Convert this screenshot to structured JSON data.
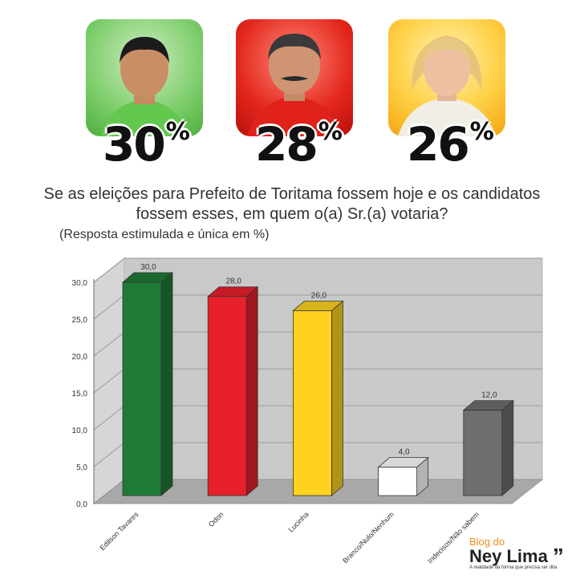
{
  "candidates": [
    {
      "percent": "30",
      "sign": "%",
      "color": "#4cae3c"
    },
    {
      "percent": "28",
      "sign": "%",
      "color": "#e3261c"
    },
    {
      "percent": "26",
      "sign": "%",
      "color": "#ffc830"
    }
  ],
  "question": "Se as eleições para Prefeito de Toritama fossem hoje e os candidatos fossem esses, em quem o(a) Sr.(a) votaria?",
  "note": "(Resposta estimulada e única em %)",
  "chart_data": {
    "type": "bar",
    "categories": [
      "Edilson Tavares",
      "Odon",
      "Lucinha",
      "Branco/Nulo/Nenhum",
      "Indecisos/Não sabem"
    ],
    "values": [
      30.0,
      28.0,
      26.0,
      4.0,
      12.0
    ],
    "value_labels": [
      "30,0",
      "28,0",
      "26,0",
      "4,0",
      "12,0"
    ],
    "bar_colors": [
      "#1e7a36",
      "#e8202a",
      "#ffd21f",
      "#ffffff",
      "#6e6e6e"
    ],
    "ylim": [
      0,
      30
    ],
    "yticks": [
      "0,0",
      "5,0",
      "10,0",
      "15,0",
      "20,0",
      "25,0",
      "30,0"
    ],
    "grid": true,
    "xlabel": "",
    "ylabel": "",
    "title": ""
  },
  "brand": {
    "line1": "Blog do",
    "line2": "Ney Lima",
    "quote": "”",
    "tagline": "A realidade da forma que precisa ser dita"
  }
}
